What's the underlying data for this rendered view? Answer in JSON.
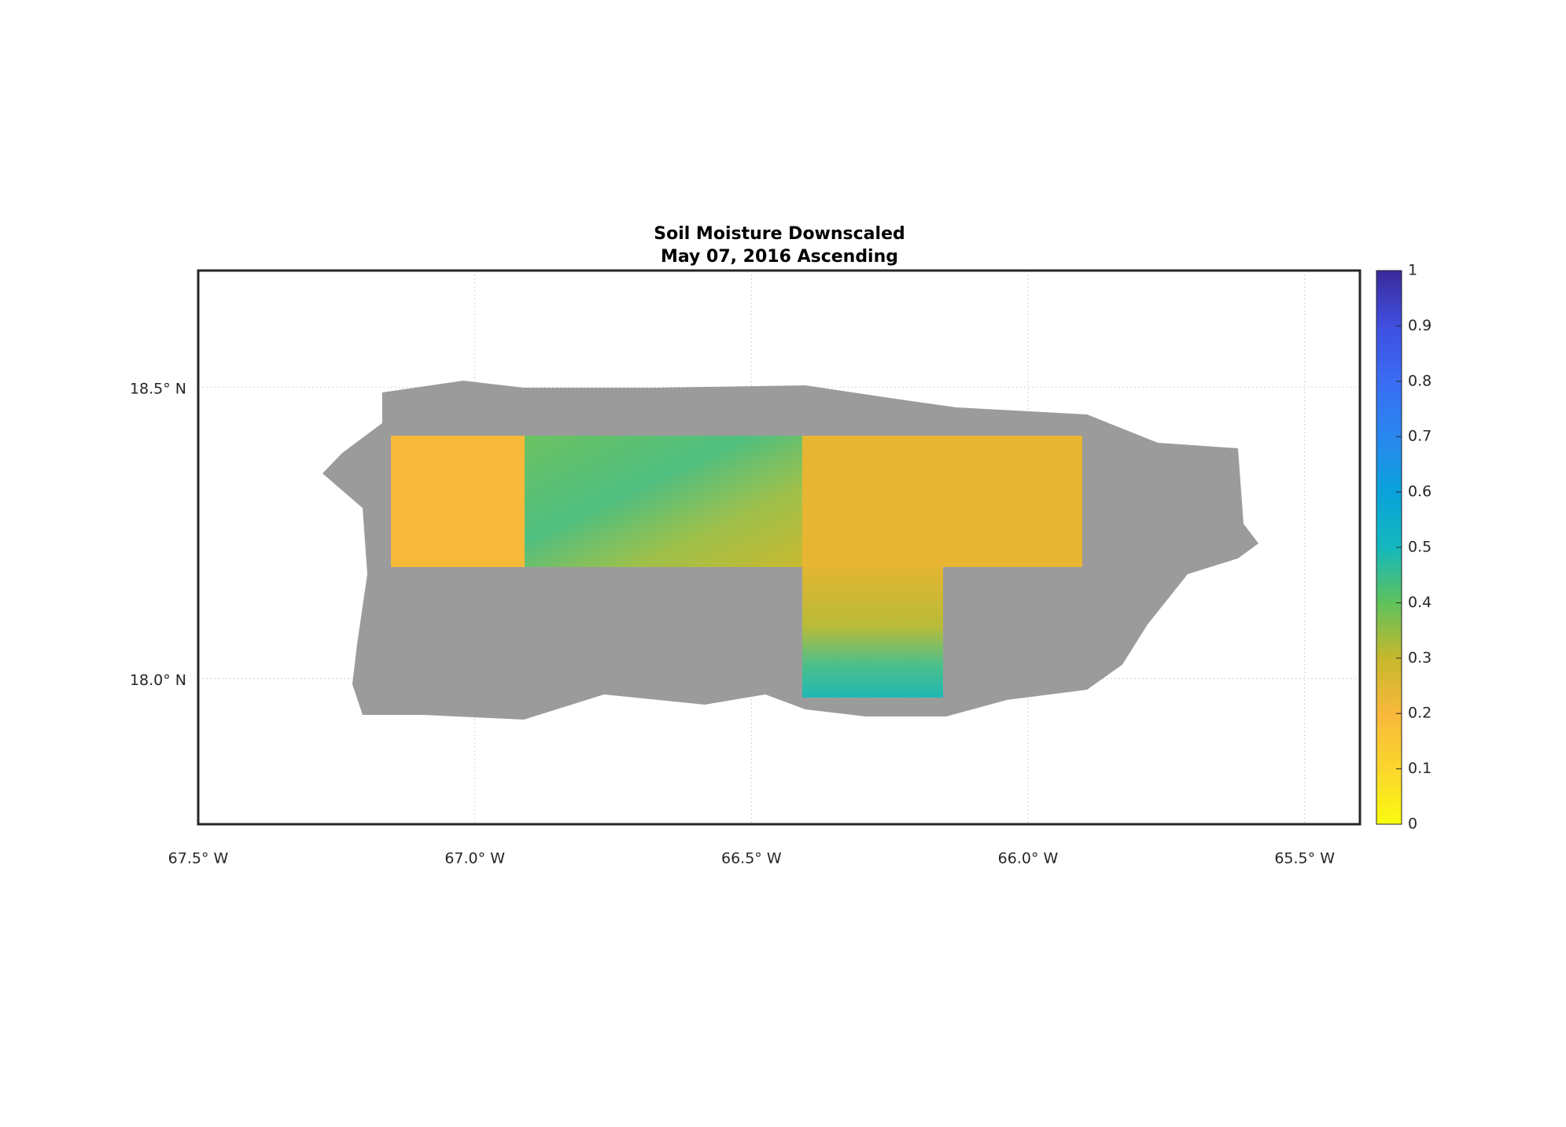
{
  "map": {
    "title": [
      "Soil Moisture Downscaled",
      "May 07, 2016 Ascending"
    ],
    "xlim": [
      -67.5,
      -65.4
    ],
    "ylim": [
      17.75,
      18.7
    ],
    "xticks": [
      {
        "value": -67.5,
        "label": "67.5° W"
      },
      {
        "value": -67.0,
        "label": "67.0° W"
      },
      {
        "value": -66.5,
        "label": "66.5° W"
      },
      {
        "value": -66.0,
        "label": "66.0° W"
      },
      {
        "value": -65.5,
        "label": "65.5° W"
      }
    ],
    "yticks": [
      {
        "value": 18.0,
        "label": "18.0° N"
      },
      {
        "value": 18.5,
        "label": "18.5° N"
      }
    ],
    "colorbar": {
      "lim": [
        0,
        1
      ],
      "ticks": [
        0,
        0.1,
        0.2,
        0.3,
        0.4,
        0.5,
        0.6,
        0.7,
        0.8,
        0.9,
        1
      ]
    }
  }
}
